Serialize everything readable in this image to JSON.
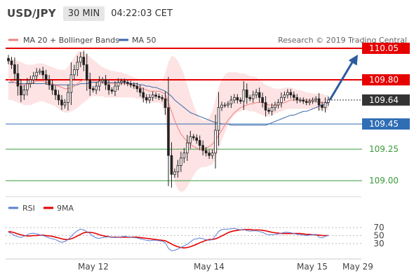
{
  "header": {
    "pair": "USD/JPY",
    "timeframe": "30 MIN",
    "time": "04:22:03 CET"
  },
  "legend": {
    "ma20": "MA 20 + Bollinger Bands",
    "ma50": "MA 50",
    "credit": "Research © 2019 Trading Central",
    "ma20_color": "#f08080",
    "band_color": "#fde3e3",
    "ma50_color": "#3d6aa8"
  },
  "chart_data": [
    {
      "type": "candlestick",
      "x_ticks": [
        "May 12",
        "May 14",
        "May 15",
        "May 29"
      ],
      "ylim": [
        108.89,
        110.1
      ],
      "current_price": 109.64,
      "levels": [
        {
          "value": 110.05,
          "label": "110.05",
          "style": "resistance",
          "color": "#e60000"
        },
        {
          "value": 109.8,
          "label": "109.80",
          "style": "resistance",
          "color": "#e60000"
        },
        {
          "value": 109.64,
          "label": "109.64",
          "style": "current",
          "color": "#333333"
        },
        {
          "value": 109.45,
          "label": "109.45",
          "style": "support",
          "color": "#2f6db5"
        },
        {
          "value": 109.25,
          "label": "109.25",
          "style": "support",
          "color": "#3a9a3a"
        },
        {
          "value": 109.0,
          "label": "109.00",
          "style": "support",
          "color": "#3a9a3a"
        }
      ],
      "close_path": [
        109.95,
        109.92,
        109.85,
        109.75,
        109.68,
        109.72,
        109.77,
        109.8,
        109.83,
        109.86,
        109.87,
        109.84,
        109.8,
        109.76,
        109.72,
        109.68,
        109.64,
        109.6,
        109.62,
        109.7,
        109.84,
        109.88,
        109.94,
        109.98,
        109.92,
        109.8,
        109.73,
        109.72,
        109.75,
        109.79,
        109.8,
        109.76,
        109.72,
        109.71,
        109.75,
        109.78,
        109.79,
        109.78,
        109.77,
        109.76,
        109.75,
        109.73,
        109.7,
        109.66,
        109.64,
        109.66,
        109.68,
        109.67,
        109.66,
        109.65,
        109.58,
        109.2,
        109.05,
        109.07,
        109.12,
        109.18,
        109.22,
        109.3,
        109.35,
        109.34,
        109.32,
        109.28,
        109.24,
        109.22,
        109.2,
        109.22,
        109.4,
        109.58,
        109.6,
        109.6,
        109.61,
        109.64,
        109.66,
        109.64,
        109.63,
        109.72,
        109.66,
        109.65,
        109.68,
        109.7,
        109.66,
        109.62,
        109.56,
        109.55,
        109.58,
        109.6,
        109.62,
        109.66,
        109.68,
        109.7,
        109.68,
        109.66,
        109.64,
        109.64,
        109.63,
        109.62,
        109.63,
        109.64,
        109.65,
        109.6,
        109.58,
        109.62,
        109.64
      ],
      "ma20_path": [
        109.8,
        109.79,
        109.78,
        109.77,
        109.76,
        109.76,
        109.76,
        109.77,
        109.78,
        109.79,
        109.79,
        109.79,
        109.78,
        109.78,
        109.77,
        109.76,
        109.75,
        109.74,
        109.73,
        109.73,
        109.74,
        109.75,
        109.77,
        109.79,
        109.8,
        109.8,
        109.8,
        109.79,
        109.79,
        109.78,
        109.78,
        109.77,
        109.77,
        109.77,
        109.77,
        109.77,
        109.77,
        109.77,
        109.77,
        109.76,
        109.76,
        109.75,
        109.74,
        109.73,
        109.72,
        109.71,
        109.71,
        109.71,
        109.71,
        109.7,
        109.69,
        109.62,
        109.55,
        109.48,
        109.42,
        109.37,
        109.34,
        109.31,
        109.29,
        109.27,
        109.26,
        109.25,
        109.25,
        109.26,
        109.27,
        109.29,
        109.32,
        109.36,
        109.4,
        109.44,
        109.48,
        109.51,
        109.54,
        109.56,
        109.58,
        109.59,
        109.6,
        109.61,
        109.61,
        109.62,
        109.62,
        109.62,
        109.61,
        109.6,
        109.6,
        109.6,
        109.6,
        109.61,
        109.62,
        109.63,
        109.64,
        109.64,
        109.64,
        109.64,
        109.64,
        109.64,
        109.64,
        109.63,
        109.63,
        109.62,
        109.62,
        109.62,
        109.62
      ],
      "ma20_band_upper": [
        109.98,
        109.97,
        109.96,
        109.95,
        109.94,
        109.93,
        109.92,
        109.92,
        109.92,
        109.93,
        109.93,
        109.93,
        109.92,
        109.91,
        109.9,
        109.89,
        109.88,
        109.88,
        109.88,
        109.9,
        109.94,
        109.98,
        110.02,
        110.03,
        110.02,
        110.0,
        109.98,
        109.96,
        109.94,
        109.92,
        109.9,
        109.89,
        109.88,
        109.87,
        109.87,
        109.86,
        109.86,
        109.85,
        109.84,
        109.83,
        109.82,
        109.81,
        109.8,
        109.8,
        109.8,
        109.8,
        109.8,
        109.8,
        109.79,
        109.79,
        109.85,
        109.94,
        109.99,
        109.98,
        109.95,
        109.9,
        109.84,
        109.76,
        109.68,
        109.6,
        109.54,
        109.5,
        109.48,
        109.48,
        109.5,
        109.55,
        109.64,
        109.74,
        109.8,
        109.84,
        109.86,
        109.86,
        109.86,
        109.86,
        109.85,
        109.85,
        109.84,
        109.83,
        109.83,
        109.82,
        109.8,
        109.78,
        109.76,
        109.75,
        109.74,
        109.73,
        109.73,
        109.73,
        109.74,
        109.74,
        109.74,
        109.73,
        109.72,
        109.72,
        109.71,
        109.7,
        109.7,
        109.69,
        109.69,
        109.69,
        109.69,
        109.68,
        109.68
      ],
      "ma20_band_lower": [
        109.64,
        109.64,
        109.63,
        109.62,
        109.61,
        109.6,
        109.6,
        109.6,
        109.61,
        109.62,
        109.63,
        109.63,
        109.62,
        109.61,
        109.6,
        109.59,
        109.57,
        109.55,
        109.54,
        109.54,
        109.55,
        109.56,
        109.58,
        109.6,
        109.62,
        109.64,
        109.66,
        109.67,
        109.67,
        109.67,
        109.67,
        109.66,
        109.66,
        109.66,
        109.66,
        109.66,
        109.66,
        109.66,
        109.66,
        109.66,
        109.66,
        109.65,
        109.65,
        109.64,
        109.63,
        109.62,
        109.62,
        109.62,
        109.62,
        109.6,
        109.5,
        109.3,
        109.12,
        108.99,
        108.93,
        108.91,
        108.92,
        108.95,
        109.0,
        109.04,
        109.08,
        109.1,
        109.11,
        109.11,
        109.12,
        109.13,
        109.17,
        109.24,
        109.32,
        109.38,
        109.44,
        109.49,
        109.52,
        109.54,
        109.55,
        109.56,
        109.56,
        109.55,
        109.55,
        109.54,
        109.53,
        109.52,
        109.51,
        109.51,
        109.52,
        109.53,
        109.54,
        109.55,
        109.56,
        109.57,
        109.57,
        109.57,
        109.57,
        109.57,
        109.57,
        109.57,
        109.57,
        109.57,
        109.57,
        109.56,
        109.56,
        109.56,
        109.56
      ],
      "ma50_path": [
        109.78,
        109.78,
        109.78,
        109.77,
        109.77,
        109.77,
        109.77,
        109.77,
        109.77,
        109.77,
        109.77,
        109.77,
        109.77,
        109.76,
        109.76,
        109.76,
        109.76,
        109.76,
        109.76,
        109.76,
        109.76,
        109.76,
        109.76,
        109.77,
        109.77,
        109.77,
        109.78,
        109.78,
        109.78,
        109.78,
        109.78,
        109.78,
        109.78,
        109.78,
        109.78,
        109.78,
        109.78,
        109.78,
        109.78,
        109.77,
        109.77,
        109.77,
        109.76,
        109.76,
        109.75,
        109.75,
        109.74,
        109.74,
        109.73,
        109.72,
        109.71,
        109.69,
        109.67,
        109.64,
        109.62,
        109.6,
        109.58,
        109.56,
        109.54,
        109.53,
        109.52,
        109.51,
        109.5,
        109.49,
        109.48,
        109.47,
        109.46,
        109.46,
        109.45,
        109.45,
        109.45,
        109.44,
        109.44,
        109.44,
        109.44,
        109.44,
        109.44,
        109.44,
        109.44,
        109.44,
        109.44,
        109.44,
        109.44,
        109.45,
        109.46,
        109.47,
        109.48,
        109.49,
        109.5,
        109.51,
        109.52,
        109.52,
        109.53,
        109.54,
        109.55,
        109.55,
        109.56,
        109.57,
        109.58,
        109.59,
        109.6,
        109.61,
        109.62
      ],
      "forecast": {
        "from": 109.64,
        "to": 110.05
      }
    },
    {
      "type": "line",
      "legend": [
        "RSI",
        "9MA"
      ],
      "series_colors": [
        "#5b7fd6",
        "#e60000"
      ],
      "y_ticks": [
        30,
        50,
        70
      ],
      "ylim": [
        0,
        100
      ],
      "rsi": [
        58,
        55,
        50,
        47,
        45,
        48,
        52,
        55,
        56,
        54,
        52,
        50,
        47,
        44,
        42,
        40,
        36,
        33,
        35,
        40,
        48,
        56,
        62,
        66,
        64,
        60,
        55,
        48,
        44,
        43,
        45,
        46,
        47,
        46,
        45,
        46,
        47,
        48,
        47,
        46,
        45,
        44,
        42,
        40,
        38,
        37,
        38,
        38,
        37,
        36,
        32,
        18,
        12,
        13,
        16,
        20,
        24,
        28,
        34,
        40,
        42,
        44,
        42,
        40,
        38,
        40,
        50,
        60,
        65,
        66,
        66,
        67,
        68,
        66,
        64,
        66,
        62,
        61,
        62,
        62,
        60,
        58,
        54,
        52,
        52,
        53,
        54,
        56,
        58,
        58,
        57,
        55,
        53,
        52,
        51,
        50,
        51,
        52,
        53,
        46,
        44,
        48,
        51
      ],
      "ma9": [
        60,
        59,
        57,
        54,
        52,
        50,
        49,
        49,
        50,
        50,
        51,
        51,
        50,
        49,
        48,
        46,
        44,
        42,
        40,
        40,
        42,
        45,
        49,
        53,
        57,
        58,
        58,
        57,
        55,
        52,
        50,
        48,
        47,
        46,
        46,
        46,
        46,
        46,
        46,
        46,
        46,
        46,
        45,
        44,
        43,
        42,
        41,
        40,
        39,
        38,
        37,
        33,
        29,
        25,
        22,
        20,
        19,
        20,
        22,
        25,
        28,
        32,
        35,
        38,
        40,
        40,
        42,
        45,
        49,
        53,
        57,
        60,
        62,
        63,
        64,
        65,
        65,
        65,
        64,
        64,
        64,
        63,
        62,
        60,
        58,
        57,
        56,
        55,
        55,
        55,
        55,
        55,
        55,
        55,
        54,
        53,
        53,
        52,
        52,
        51,
        50,
        50,
        50
      ]
    }
  ],
  "rsi_legend": {
    "rsi": "RSI",
    "ma9": "9MA"
  },
  "x_labels": {
    "may12": "May 12",
    "may14": "May 14",
    "may15": "May 15",
    "may29": "May 29"
  }
}
